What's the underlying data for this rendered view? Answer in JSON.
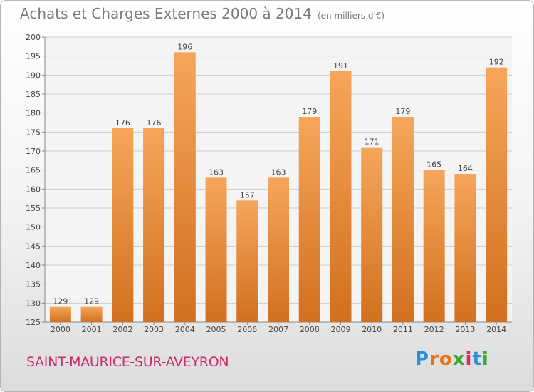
{
  "title": "Achats et Charges Externes 2000 à 2014",
  "subtitle": "(en milliers d'€)",
  "commune": "SAINT-MAURICE-SUR-AVEYRON",
  "logo": {
    "letters": [
      "P",
      "r",
      "o",
      "x",
      "i",
      "t",
      "i"
    ],
    "colors": [
      "#2b8fd6",
      "#e8731a",
      "#e8731a",
      "#3aa83a",
      "#d62d6a",
      "#2b8fd6",
      "#3aa83a"
    ]
  },
  "colors": {
    "bar_light": "#f5a65a",
    "bar_dark": "#d2701e",
    "grid": "#cccccc"
  },
  "chart_data": {
    "type": "bar",
    "categories": [
      "2000",
      "2001",
      "2002",
      "2003",
      "2004",
      "2005",
      "2006",
      "2007",
      "2008",
      "2009",
      "2010",
      "2011",
      "2012",
      "2013",
      "2014"
    ],
    "values": [
      129,
      129,
      176,
      176,
      196,
      163,
      157,
      163,
      179,
      191,
      171,
      179,
      165,
      164,
      192
    ],
    "ylim": [
      125,
      200
    ],
    "yticks": [
      125,
      130,
      135,
      140,
      145,
      150,
      155,
      160,
      165,
      170,
      175,
      180,
      185,
      190,
      195,
      200
    ],
    "grid": true
  }
}
